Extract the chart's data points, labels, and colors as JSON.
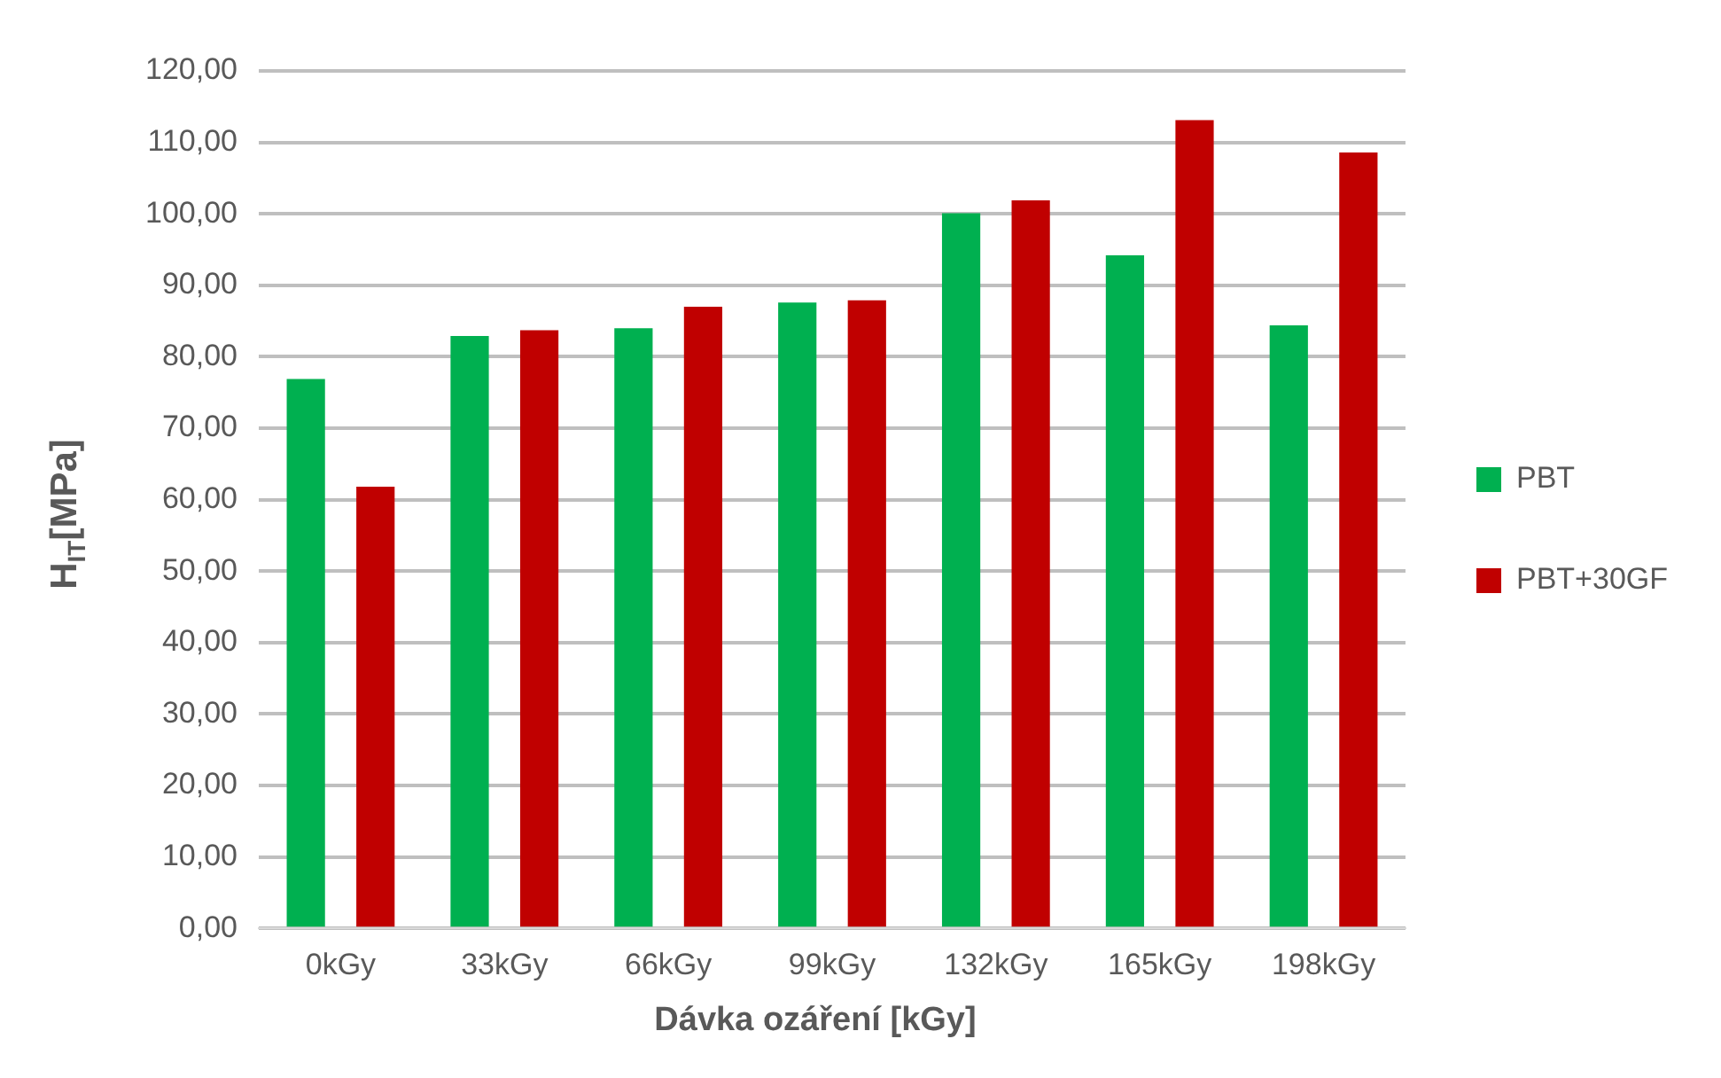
{
  "chart_data": {
    "type": "bar",
    "xlabel": "Dávka ozáření [kGy]",
    "ylabel": "H$_{IT}$[MPa]",
    "categories": [
      "0kGy",
      "33kGy",
      "66kGy",
      "99kGy",
      "132kGy",
      "165kGy",
      "198kGy"
    ],
    "series": [
      {
        "name": "PBT",
        "color": "#00b050",
        "values": [
          76.9,
          82.9,
          84.0,
          87.6,
          100.1,
          94.2,
          84.4
        ]
      },
      {
        "name": "PBT+30GF",
        "color": "#c00000",
        "values": [
          61.8,
          83.7,
          87.0,
          87.9,
          101.9,
          113.1,
          108.6
        ]
      }
    ],
    "ylim": [
      0,
      120
    ],
    "yticks": [
      {
        "value": 0,
        "label": "0,00"
      },
      {
        "value": 10,
        "label": "10,00"
      },
      {
        "value": 20,
        "label": "20,00"
      },
      {
        "value": 30,
        "label": "30,00"
      },
      {
        "value": 40,
        "label": "40,00"
      },
      {
        "value": 50,
        "label": "50,00"
      },
      {
        "value": 60,
        "label": "60,00"
      },
      {
        "value": 70,
        "label": "70,00"
      },
      {
        "value": 80,
        "label": "80,00"
      },
      {
        "value": 90,
        "label": "90,00"
      },
      {
        "value": 100,
        "label": "100,00"
      },
      {
        "value": 110,
        "label": "110,00"
      },
      {
        "value": 120,
        "label": "120,00"
      }
    ],
    "grid": "y",
    "legend": "right"
  }
}
